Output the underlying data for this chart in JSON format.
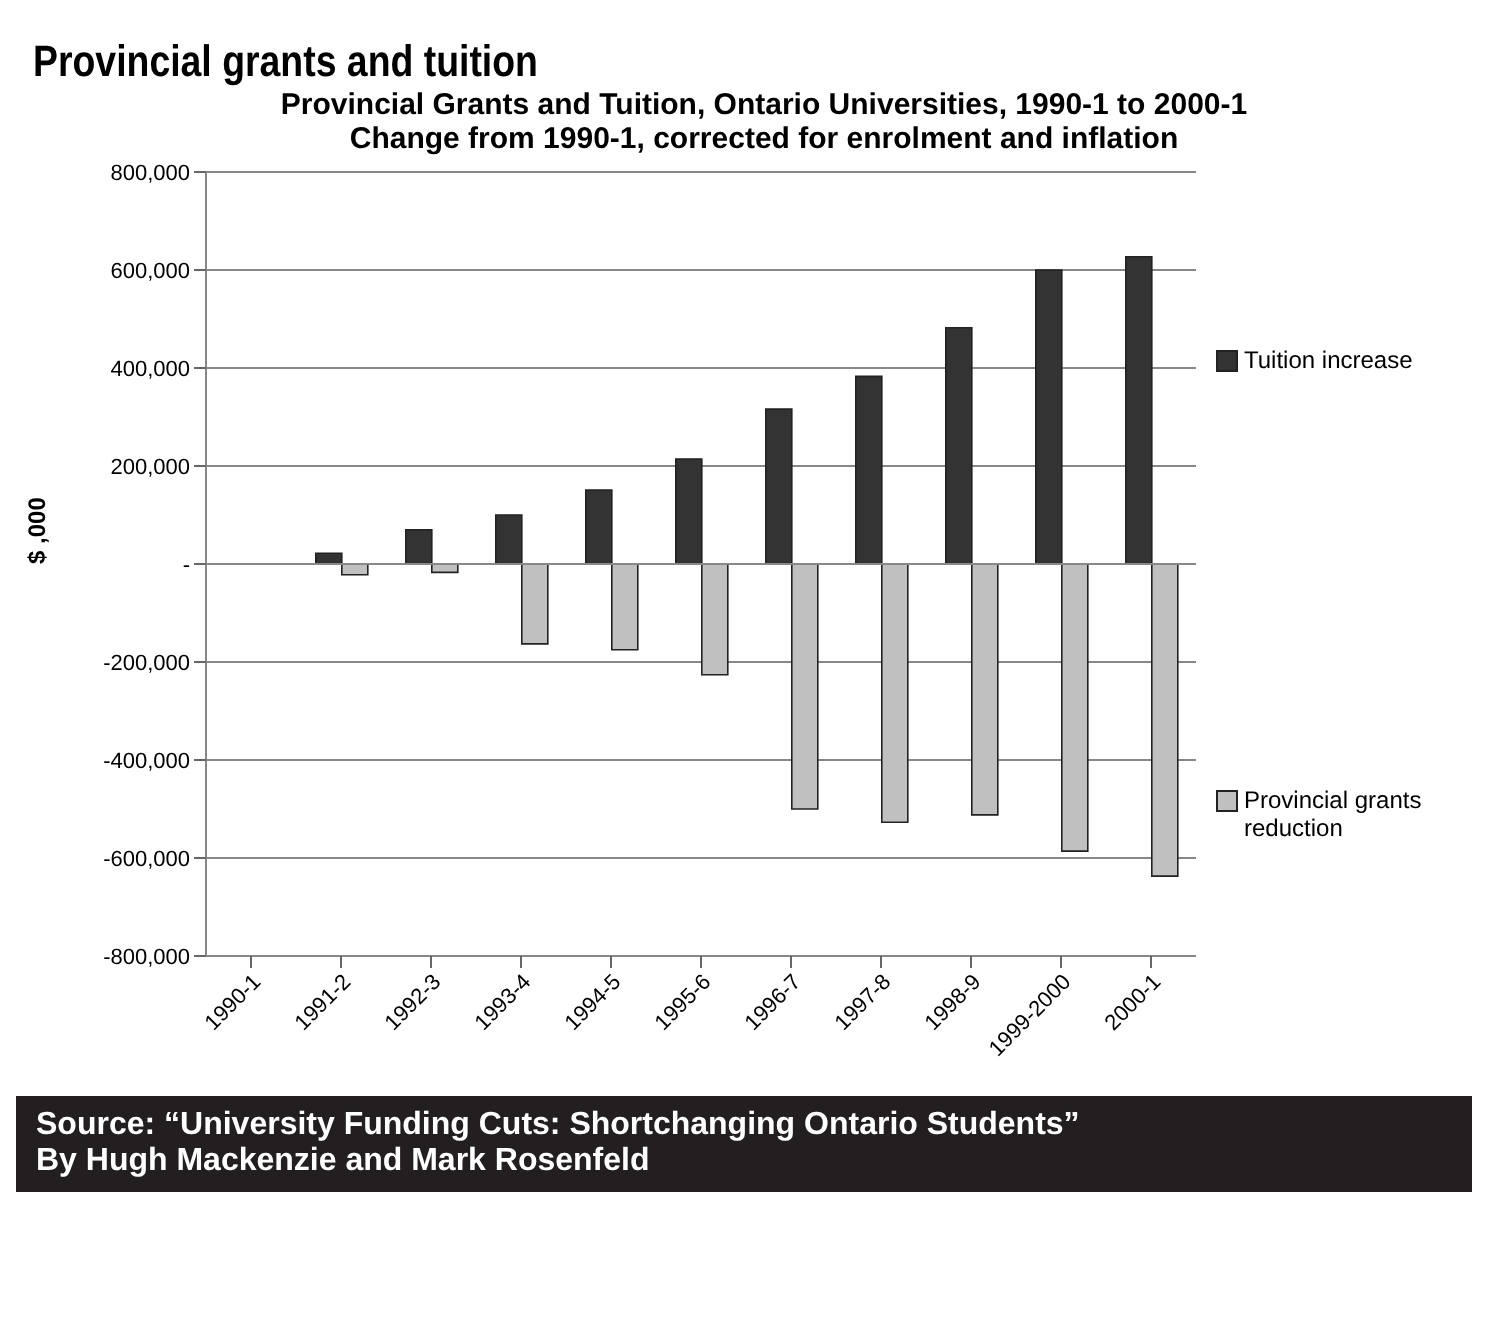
{
  "chart_data": {
    "type": "bar",
    "title": "Provincial grants and tuition",
    "subtitle": "Provincial Grants and Tuition, Ontario Universities, 1990-1 to 2000-1\nChange from 1990-1, corrected for enrolment and inflation",
    "ylabel": "$ ,000",
    "categories": [
      "1990-1",
      "1991-2",
      "1992-3",
      "1993-4",
      "1994-5",
      "1995-6",
      "1996-7",
      "1997-8",
      "1998-9",
      "1999-2000",
      "2000-1"
    ],
    "series": [
      {
        "name": "Tuition increase",
        "color": "#333333",
        "values": [
          0,
          22000,
          70000,
          100000,
          151000,
          214000,
          316000,
          383000,
          482000,
          600000,
          627000
        ]
      },
      {
        "name": "Provincial grants reduction",
        "color": "#c0c0c0",
        "values": [
          0,
          -22000,
          -17000,
          -163000,
          -175000,
          -226000,
          -500000,
          -527000,
          -512000,
          -586000,
          -637000
        ]
      }
    ],
    "ylim": [
      -800000,
      800000
    ],
    "yticks": [
      {
        "value": -800000,
        "label": "-800,000"
      },
      {
        "value": -600000,
        "label": "-600,000"
      },
      {
        "value": -400000,
        "label": "-400,000"
      },
      {
        "value": -200000,
        "label": "-200,000"
      },
      {
        "value": 0,
        "label": "-"
      },
      {
        "value": 200000,
        "label": "200,000"
      },
      {
        "value": 400000,
        "label": "400,000"
      },
      {
        "value": 600000,
        "label": "600,000"
      },
      {
        "value": 800000,
        "label": "800,000"
      }
    ],
    "grid": "y",
    "legend": "right",
    "annotations": [
      "Source: “University Funding Cuts: Shortchanging Ontario Students”",
      "By Hugh Mackenzie and Mark Rosenfeld"
    ]
  }
}
